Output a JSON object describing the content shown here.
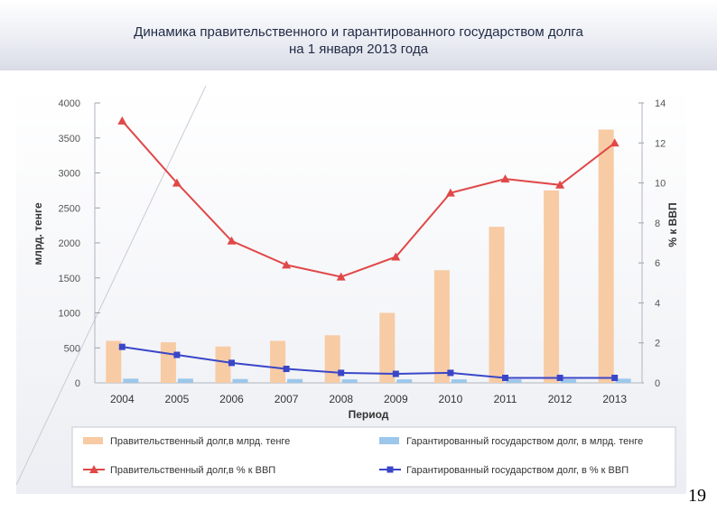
{
  "slide": {
    "title_line1": "Динамика правительственного и гарантированного государством долга",
    "title_line2": "на 1 января 2013 года",
    "page_number": "19"
  },
  "chart_data": {
    "type": "bar+line",
    "categories": [
      "2004",
      "2005",
      "2006",
      "2007",
      "2008",
      "2009",
      "2010",
      "2011",
      "2012",
      "2013"
    ],
    "xlabel": "Период",
    "ylabel_left": "млрд. тенге",
    "ylabel_right": "% к ВВП",
    "ylim_left": [
      0,
      4000
    ],
    "yticks_left": [
      "0",
      "500",
      "1000",
      "1500",
      "2000",
      "2500",
      "3000",
      "3500",
      "4000"
    ],
    "ylim_right": [
      0,
      14
    ],
    "yticks_right": [
      "0",
      "2",
      "4",
      "6",
      "8",
      "10",
      "12",
      "14"
    ],
    "legend_position": "bottom",
    "series": [
      {
        "name": "Правительственный долг,в млрд. тенге",
        "type": "bar",
        "axis": "left",
        "color": "#f7cba4",
        "values": [
          600,
          580,
          520,
          600,
          680,
          1000,
          1610,
          2230,
          2750,
          3620
        ]
      },
      {
        "name": "Гарантированный государством долг, в млрд. тенге",
        "type": "bar",
        "axis": "left",
        "color": "#9cc7ea",
        "values": [
          60,
          60,
          55,
          55,
          50,
          50,
          50,
          50,
          50,
          60
        ]
      },
      {
        "name": "Правительственный долг,в % к ВВП",
        "type": "line",
        "axis": "right",
        "color": "#e04848",
        "marker": "triangle",
        "values": [
          13.1,
          10.0,
          7.1,
          5.9,
          5.3,
          6.3,
          9.5,
          10.2,
          9.9,
          12.0
        ]
      },
      {
        "name": "Гарантированный государством долг, в % к ВВП",
        "type": "line",
        "axis": "right",
        "color": "#3a46c8",
        "marker": "square",
        "values": [
          1.8,
          1.4,
          1.0,
          0.7,
          0.5,
          0.45,
          0.5,
          0.25,
          0.25,
          0.25
        ]
      }
    ]
  }
}
